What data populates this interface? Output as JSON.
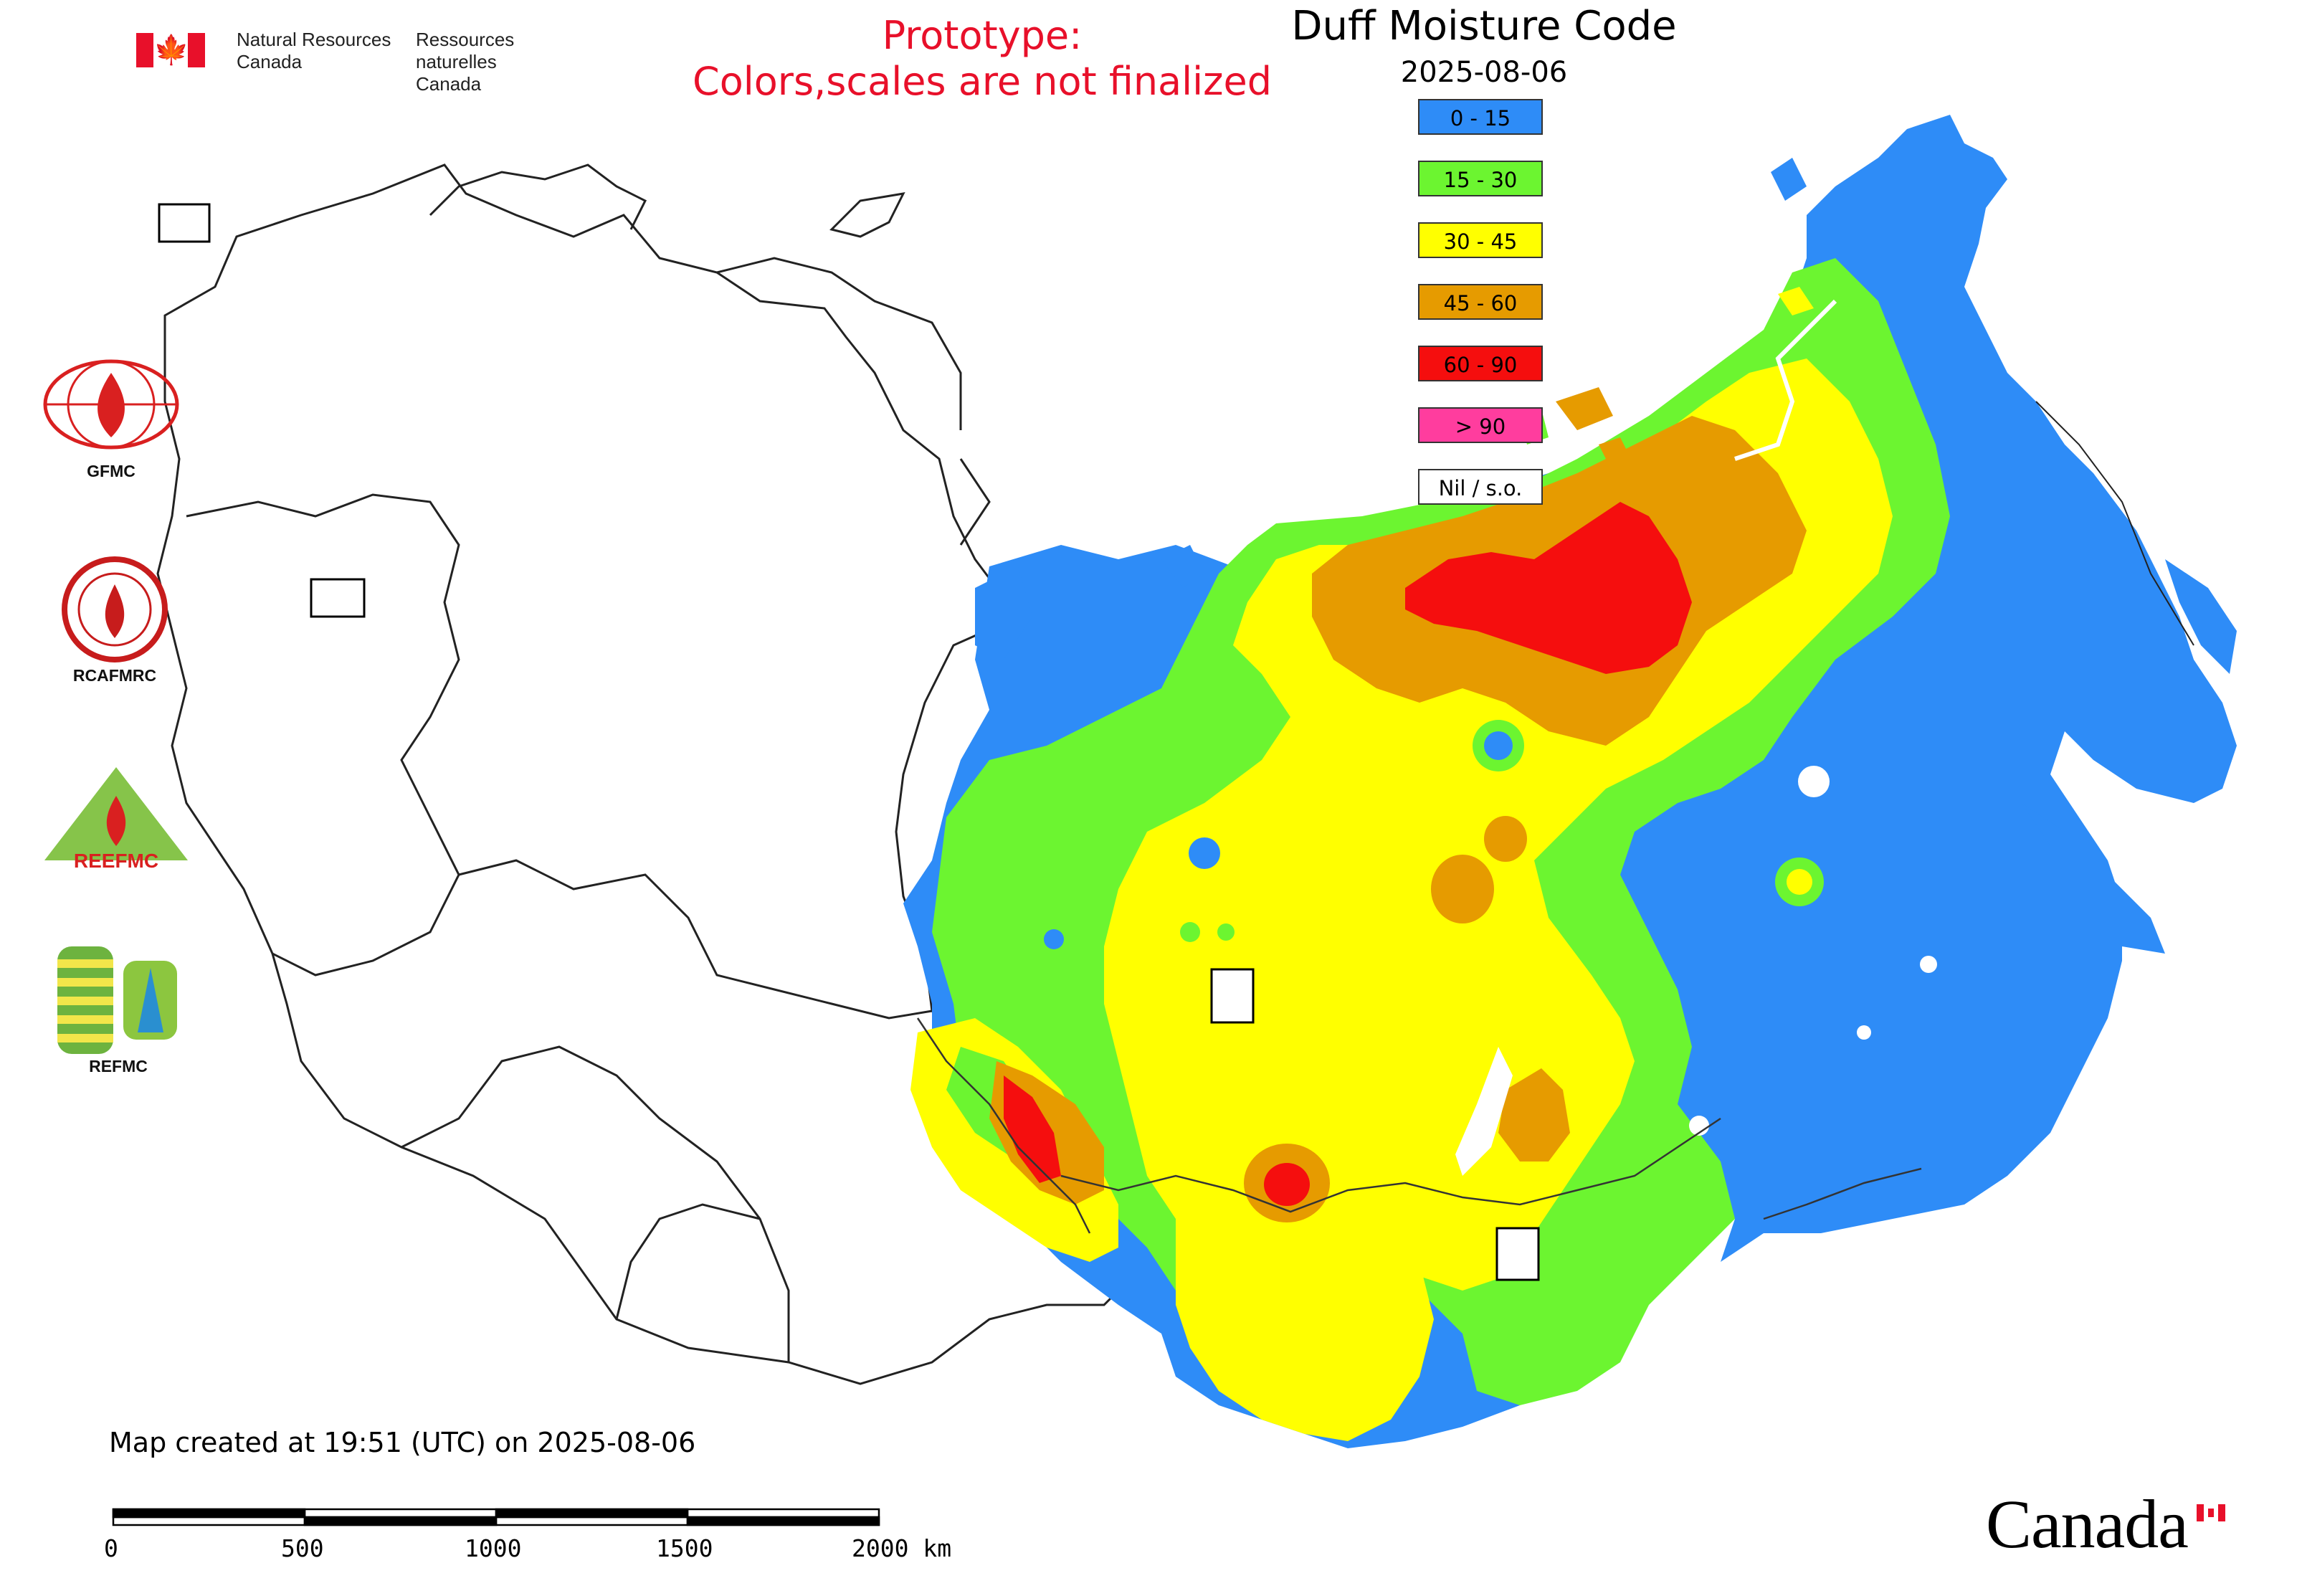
{
  "header": {
    "agency_en_line1": "Natural Resources",
    "agency_en_line2": "Canada",
    "agency_fr_line1": "Ressources naturelles",
    "agency_fr_line2": "Canada",
    "prototype_line1": "Prototype:",
    "prototype_line2": "Colors,scales are not finalized"
  },
  "map": {
    "title": "Duff Moisture Code",
    "date": "2025-08-06",
    "created_note": "Map created at 19:51 (UTC) on 2025-08-06"
  },
  "legend": {
    "items": [
      {
        "label": "0 - 15",
        "color": "#2e8cf7"
      },
      {
        "label": "15 - 30",
        "color": "#6cf530"
      },
      {
        "label": "30 - 45",
        "color": "#ffff00"
      },
      {
        "label": "45 - 60",
        "color": "#e69b00"
      },
      {
        "label": "60 - 90",
        "color": "#f50e0e"
      },
      {
        "label": "> 90",
        "color": "#ff3d9e"
      },
      {
        "label": "Nil / s.o.",
        "color": "#ffffff"
      }
    ]
  },
  "logos": {
    "gfmc": "GFMC",
    "rcafmrc": "RCAFMRC",
    "reefmc_label": "REEFMC",
    "refmc": "REFMC"
  },
  "scale_bar": {
    "ticks": [
      "0",
      "500",
      "1000",
      "1500",
      "2000 km"
    ]
  },
  "footer": {
    "canada_wordmark": "Canada"
  }
}
